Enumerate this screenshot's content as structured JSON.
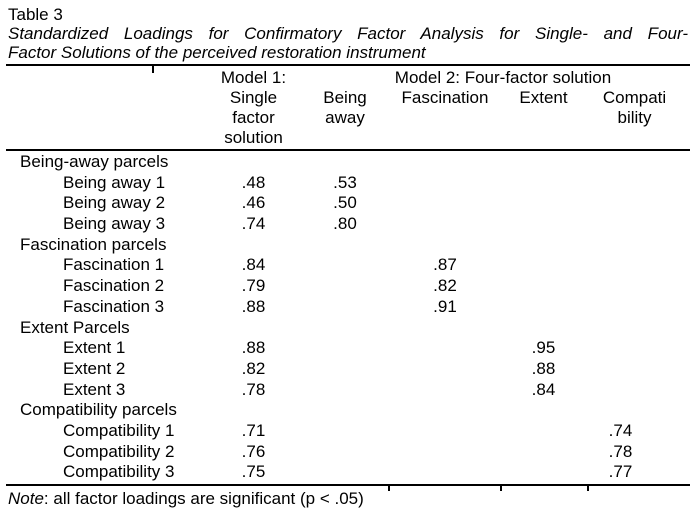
{
  "doc": {
    "title": "Table 3",
    "caption_line1": "Standardized Loadings for Confirmatory Factor Analysis for Single- and Four-",
    "caption_line2": "Factor Solutions of the perceived restoration instrument"
  },
  "table": {
    "header": {
      "model1": "Model 1:",
      "model2": "Model 2: Four-factor solution",
      "single_factor": [
        "Single",
        "factor",
        "solution"
      ],
      "being_away": [
        "Being",
        "away"
      ],
      "fascination": "Fascination",
      "extent": "Extent",
      "compatibility": [
        "Compati",
        "bility"
      ]
    },
    "rows": [
      {
        "label": "Being-away parcels"
      },
      {
        "label": "Being away 1",
        "m1": ".48",
        "ba": ".53"
      },
      {
        "label": "Being away 2",
        "m1": ".46",
        "ba": ".50"
      },
      {
        "label": "Being away 3",
        "m1": ".74",
        "ba": ".80"
      },
      {
        "label": "Fascination parcels"
      },
      {
        "label": "Fascination 1",
        "m1": ".84",
        "fa": ".87"
      },
      {
        "label": "Fascination 2",
        "m1": ".79",
        "fa": ".82"
      },
      {
        "label": "Fascination 3",
        "m1": ".88",
        "fa": ".91"
      },
      {
        "label": "Extent Parcels"
      },
      {
        "label": "Extent 1",
        "m1": ".88",
        "ex": ".95"
      },
      {
        "label": "Extent 2",
        "m1": ".82",
        "ex": ".88"
      },
      {
        "label": "Extent 3",
        "m1": ".78",
        "ex": ".84"
      },
      {
        "label": "Compatibility parcels"
      },
      {
        "label": "Compatibility 1",
        "m1": ".71",
        "co": ".74"
      },
      {
        "label": "Compatibility 2",
        "m1": ".76",
        "co": ".78"
      },
      {
        "label": "Compatibility 3",
        "m1": ".75",
        "co": ".77"
      }
    ]
  },
  "note": {
    "prefix": "Note",
    "text": ": all factor loadings are significant (p < .05)"
  }
}
